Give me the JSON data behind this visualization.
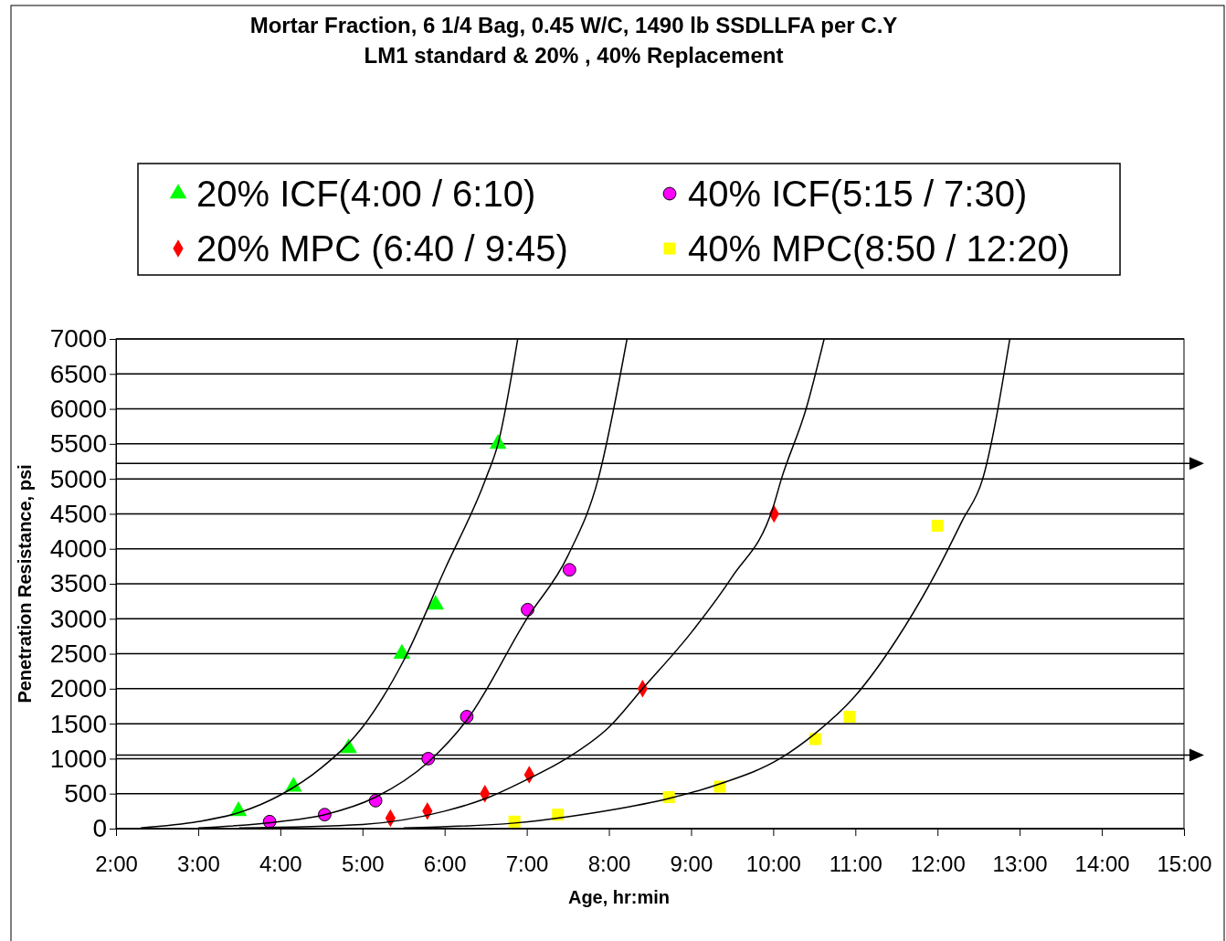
{
  "chart_data": {
    "type": "scatter",
    "title": "Mortar Fraction, 6 1/4 Bag, 0.45 W/C, 1490 lb SSDLLFA per C.Y\nLM1 standard & 20% , 40% Replacement",
    "xlabel": "Age, hr:min",
    "ylabel": "Penetration Resistance, psi",
    "xlim": [
      2,
      15
    ],
    "ylim": [
      0,
      7000
    ],
    "xticks": [
      {
        "value": 2,
        "label": "2:00"
      },
      {
        "value": 3,
        "label": "3:00"
      },
      {
        "value": 4,
        "label": "4:00"
      },
      {
        "value": 5,
        "label": "5:00"
      },
      {
        "value": 6,
        "label": "6:00"
      },
      {
        "value": 7,
        "label": "7:00"
      },
      {
        "value": 8,
        "label": "8:00"
      },
      {
        "value": 9,
        "label": "9:00"
      },
      {
        "value": 10,
        "label": "10:00"
      },
      {
        "value": 11,
        "label": "11:00"
      },
      {
        "value": 12,
        "label": "12:00"
      },
      {
        "value": 13,
        "label": "13:00"
      },
      {
        "value": 14,
        "label": "14:00"
      },
      {
        "value": 15,
        "label": "15:00"
      }
    ],
    "yticks": [
      0,
      500,
      1000,
      1500,
      2000,
      2500,
      3000,
      3500,
      4000,
      4500,
      5000,
      5500,
      6000,
      6500,
      7000
    ],
    "grid": "y",
    "legend": "top",
    "ref_lines": [
      {
        "axis": "y",
        "value": 1050,
        "color": "#000000"
      },
      {
        "axis": "y",
        "value": 5220,
        "color": "#000000"
      }
    ],
    "series": [
      {
        "name": "20% ICF(4:00 / 6:10)",
        "color": "#00ff00",
        "marker": "triangle",
        "x": [
          3.49,
          4.16,
          4.83,
          5.48,
          5.89,
          6.65
        ],
        "values": [
          250,
          600,
          1150,
          2500,
          3200,
          5500
        ]
      },
      {
        "name": "40% ICF(5:15 / 7:30)",
        "color": "#ff00ff",
        "marker": "circle",
        "x": [
          3.87,
          4.54,
          5.16,
          5.8,
          6.27,
          7.01,
          7.52
        ],
        "values": [
          100,
          200,
          400,
          1000,
          1600,
          3130,
          3700
        ]
      },
      {
        "name": "20% MPC (6:40 / 9:45)",
        "color": "#ff0000",
        "marker": "diamond",
        "x": [
          5.34,
          5.79,
          6.49,
          7.03,
          8.41,
          10.01
        ],
        "values": [
          150,
          250,
          500,
          770,
          2000,
          4500
        ]
      },
      {
        "name": "40% MPC(8:50 / 12:20)",
        "color": "#ffff00",
        "marker": "square",
        "x": [
          6.85,
          7.38,
          8.73,
          9.35,
          10.51,
          10.93,
          12.0
        ],
        "values": [
          100,
          200,
          450,
          600,
          1280,
          1600,
          4330
        ]
      },
      {
        "type": "line",
        "color": "#000000",
        "x": [
          2.3,
          3.0,
          3.5,
          4.0,
          4.5,
          5.0,
          5.5,
          6.0,
          6.5,
          6.65,
          6.89
        ],
        "values": [
          10,
          100,
          230,
          480,
          870,
          1450,
          2400,
          3700,
          5000,
          5500,
          7000
        ]
      },
      {
        "type": "line",
        "color": "#000000",
        "x": [
          3.0,
          4.0,
          4.54,
          5.16,
          5.8,
          6.27,
          7.0,
          7.5,
          7.87,
          8.22
        ],
        "values": [
          10,
          100,
          200,
          450,
          950,
          1550,
          3000,
          3900,
          5000,
          7000
        ]
      },
      {
        "type": "line",
        "color": "#000000",
        "x": [
          3.5,
          5.0,
          6.0,
          6.5,
          7.0,
          7.48,
          8.0,
          8.41,
          9.0,
          9.5,
          10.0,
          10.1,
          10.4,
          10.62
        ],
        "values": [
          10,
          60,
          250,
          430,
          700,
          1000,
          1450,
          2000,
          2800,
          3600,
          4600,
          5000,
          6000,
          7000
        ]
      },
      {
        "type": "line",
        "color": "#000000",
        "x": [
          5.5,
          6.85,
          7.5,
          8.0,
          8.73,
          9.35,
          10.08,
          10.5,
          11.0,
          11.5,
          12.0,
          12.3,
          12.55,
          12.88
        ],
        "values": [
          10,
          80,
          170,
          260,
          430,
          640,
          1000,
          1350,
          1900,
          2700,
          3700,
          4400,
          5000,
          7000
        ]
      }
    ]
  }
}
